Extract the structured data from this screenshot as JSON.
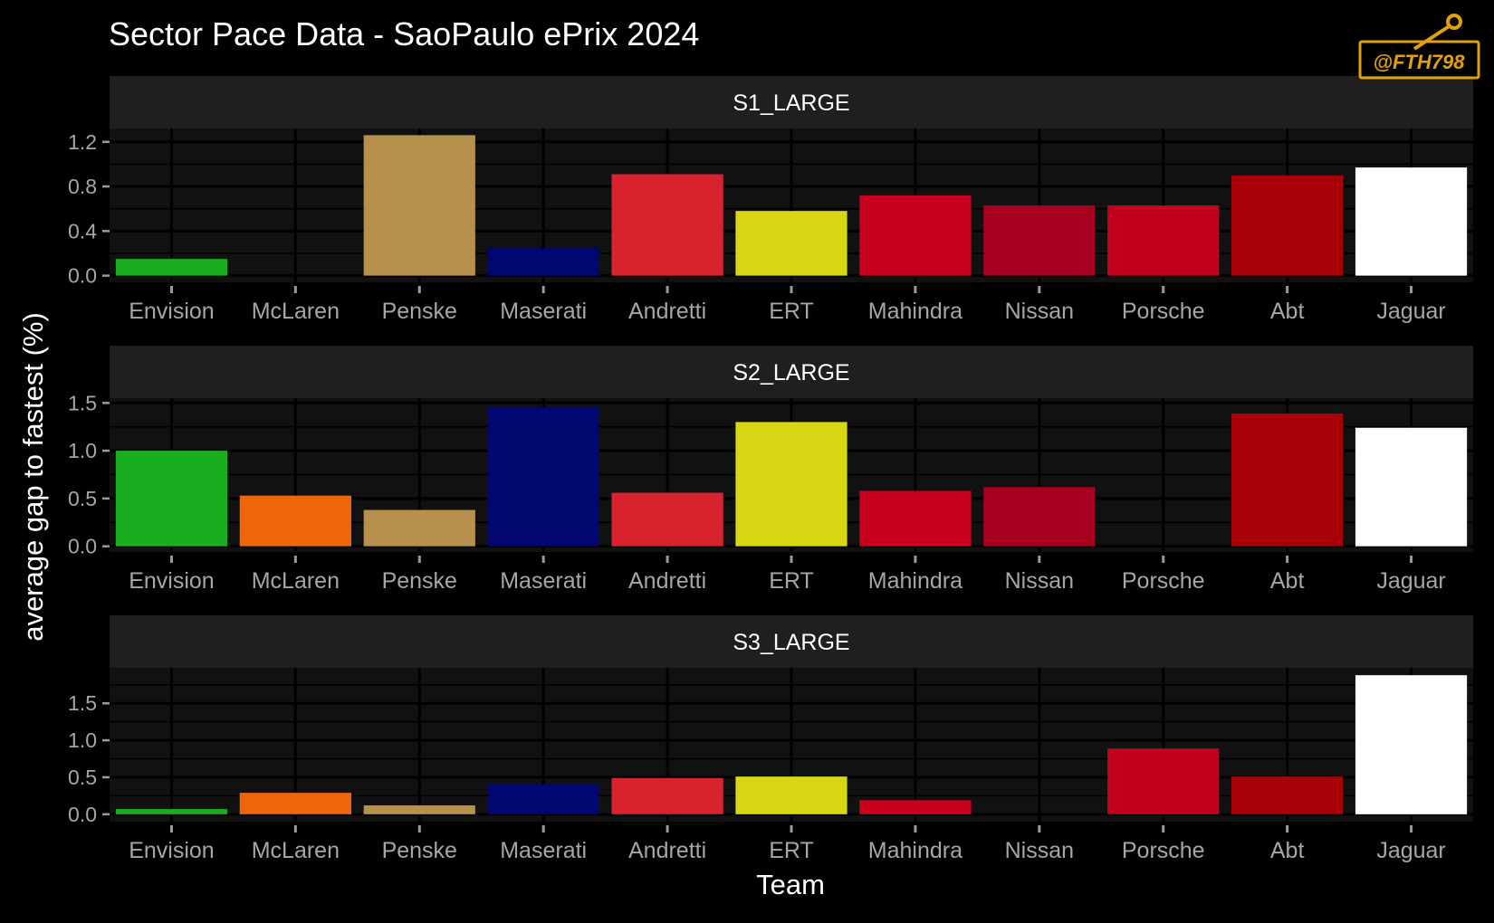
{
  "chart_data": {
    "type": "bar",
    "title": "Sector Pace Data - SaoPaulo ePrix 2024",
    "xlabel": "Team",
    "ylabel": "average gap to fastest (%)",
    "watermark_text": "@FTH798",
    "categories": [
      "Envision",
      "McLaren",
      "Penske",
      "Maserati",
      "Andretti",
      "ERT",
      "Mahindra",
      "Nissan",
      "Porsche",
      "Abt",
      "Jaguar"
    ],
    "colors": [
      "#1aad1f",
      "#f0650a",
      "#b5914d",
      "#02066f",
      "#d8232f",
      "#d7d813",
      "#c9001e",
      "#a6001e",
      "#c2001d",
      "#a80009",
      "#ffffff"
    ],
    "panels": [
      {
        "label": "S1_LARGE",
        "values": [
          0.15,
          null,
          1.26,
          0.25,
          0.91,
          0.58,
          0.72,
          0.63,
          0.63,
          0.9,
          0.97
        ],
        "ylim": [
          -0.06,
          1.32
        ],
        "ticks": [
          0.0,
          0.4,
          0.8,
          1.2
        ],
        "tick_labels": [
          "0.0",
          "0.4",
          "0.8",
          "1.2"
        ]
      },
      {
        "label": "S2_LARGE",
        "values": [
          1.0,
          0.53,
          0.38,
          1.46,
          0.56,
          1.3,
          0.58,
          0.62,
          null,
          1.39,
          1.24
        ],
        "ylim": [
          -0.06,
          1.55
        ],
        "ticks": [
          0.0,
          0.5,
          1.0,
          1.5
        ],
        "tick_labels": [
          "0.0",
          "0.5",
          "1.0",
          "1.5"
        ]
      },
      {
        "label": "S3_LARGE",
        "values": [
          0.07,
          0.29,
          0.12,
          0.41,
          0.49,
          0.51,
          0.19,
          null,
          0.89,
          0.51,
          1.88
        ],
        "ylim": [
          -0.1,
          1.98
        ],
        "ticks": [
          0.0,
          0.5,
          1.0,
          1.5
        ],
        "tick_labels": [
          "0.0",
          "0.5",
          "1.0",
          "1.5"
        ]
      }
    ],
    "grid": true,
    "legend": "none"
  }
}
